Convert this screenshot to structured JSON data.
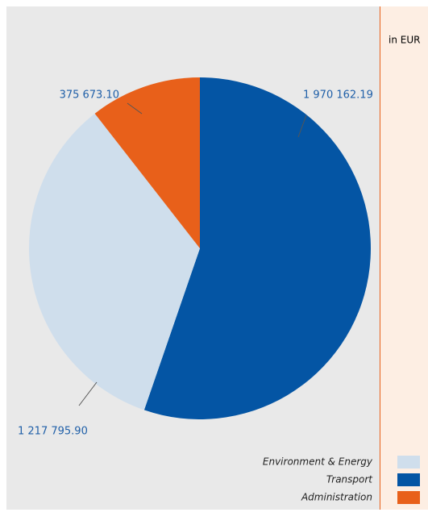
{
  "chart_data": {
    "type": "pie",
    "unit_label": "in EUR",
    "categories": [
      "Environment & Energy",
      "Transport",
      "Administration"
    ],
    "values": [
      1217795.9,
      1970162.19,
      375673.1
    ],
    "value_labels": [
      "1 217 795.90",
      "1 970 162.19",
      "375 673.10"
    ],
    "colors": [
      "#cfdeec",
      "#0455a4",
      "#e8601a"
    ]
  }
}
